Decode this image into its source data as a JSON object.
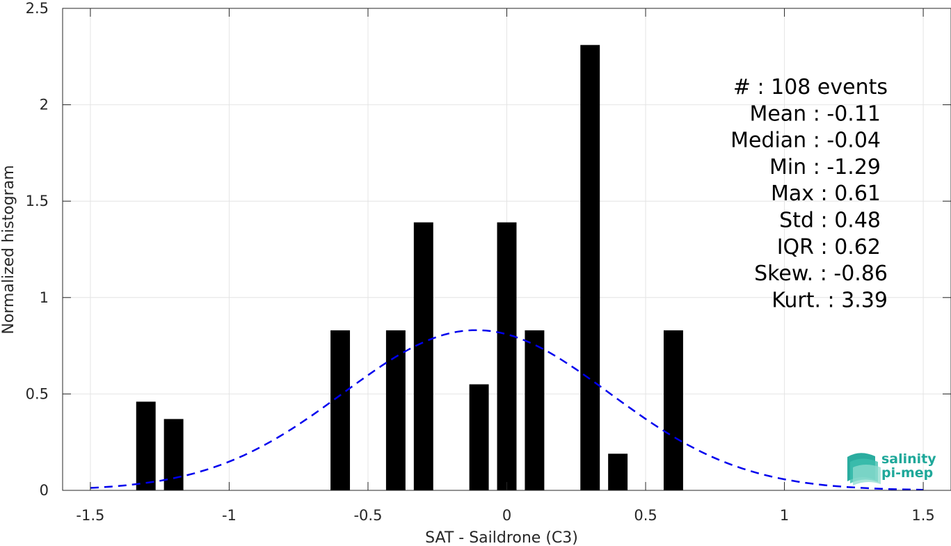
{
  "chart_data": {
    "type": "bar",
    "xlabel": "SAT - Saildrone (C3)",
    "ylabel": "Normalized histogram",
    "xlim": [
      -1.6,
      1.6
    ],
    "ylim": [
      0,
      2.5
    ],
    "xticks": [
      -1.5,
      -1,
      -0.5,
      0,
      0.5,
      1,
      1.5
    ],
    "xtick_labels": [
      "-1.5",
      "-1",
      "-0.5",
      "0",
      "0.5",
      "1",
      "1.5"
    ],
    "yticks": [
      0,
      0.5,
      1,
      1.5,
      2,
      2.5
    ],
    "ytick_labels": [
      "0",
      "0.5",
      "1",
      "1.5",
      "2",
      "2.5"
    ],
    "grid": true,
    "bar_color": "#000000",
    "bars": [
      {
        "x": -1.3,
        "value": 0.46
      },
      {
        "x": -1.2,
        "value": 0.37
      },
      {
        "x": -0.6,
        "value": 0.83
      },
      {
        "x": -0.4,
        "value": 0.83
      },
      {
        "x": -0.3,
        "value": 1.39
      },
      {
        "x": -0.1,
        "value": 0.55
      },
      {
        "x": 0.0,
        "value": 1.39
      },
      {
        "x": 0.1,
        "value": 0.83
      },
      {
        "x": 0.3,
        "value": 2.31
      },
      {
        "x": 0.4,
        "value": 0.19
      },
      {
        "x": 0.6,
        "value": 0.83
      }
    ],
    "bar_width": 0.07,
    "fit_curve": {
      "style": "dashed",
      "color": "#0000ee",
      "mean": -0.11,
      "std": 0.48,
      "x_range": [
        -1.5,
        1.5
      ]
    },
    "stats": [
      {
        "label": "#  ",
        "value": "108 events"
      },
      {
        "label": "Mean",
        "value": "-0.11"
      },
      {
        "label": "Median",
        "value": "-0.04"
      },
      {
        "label": "Min",
        "value": "-1.29"
      },
      {
        "label": "Max",
        "value": "0.61"
      },
      {
        "label": "Std",
        "value": "0.48"
      },
      {
        "label": "IQR",
        "value": "0.62"
      },
      {
        "label": "Skew.",
        "value": "-0.86"
      },
      {
        "label": "Kurt.",
        "value": "3.39"
      }
    ]
  },
  "logo": {
    "line1": "salinity",
    "line2": "pi-mep",
    "color": "#1fa89a"
  }
}
